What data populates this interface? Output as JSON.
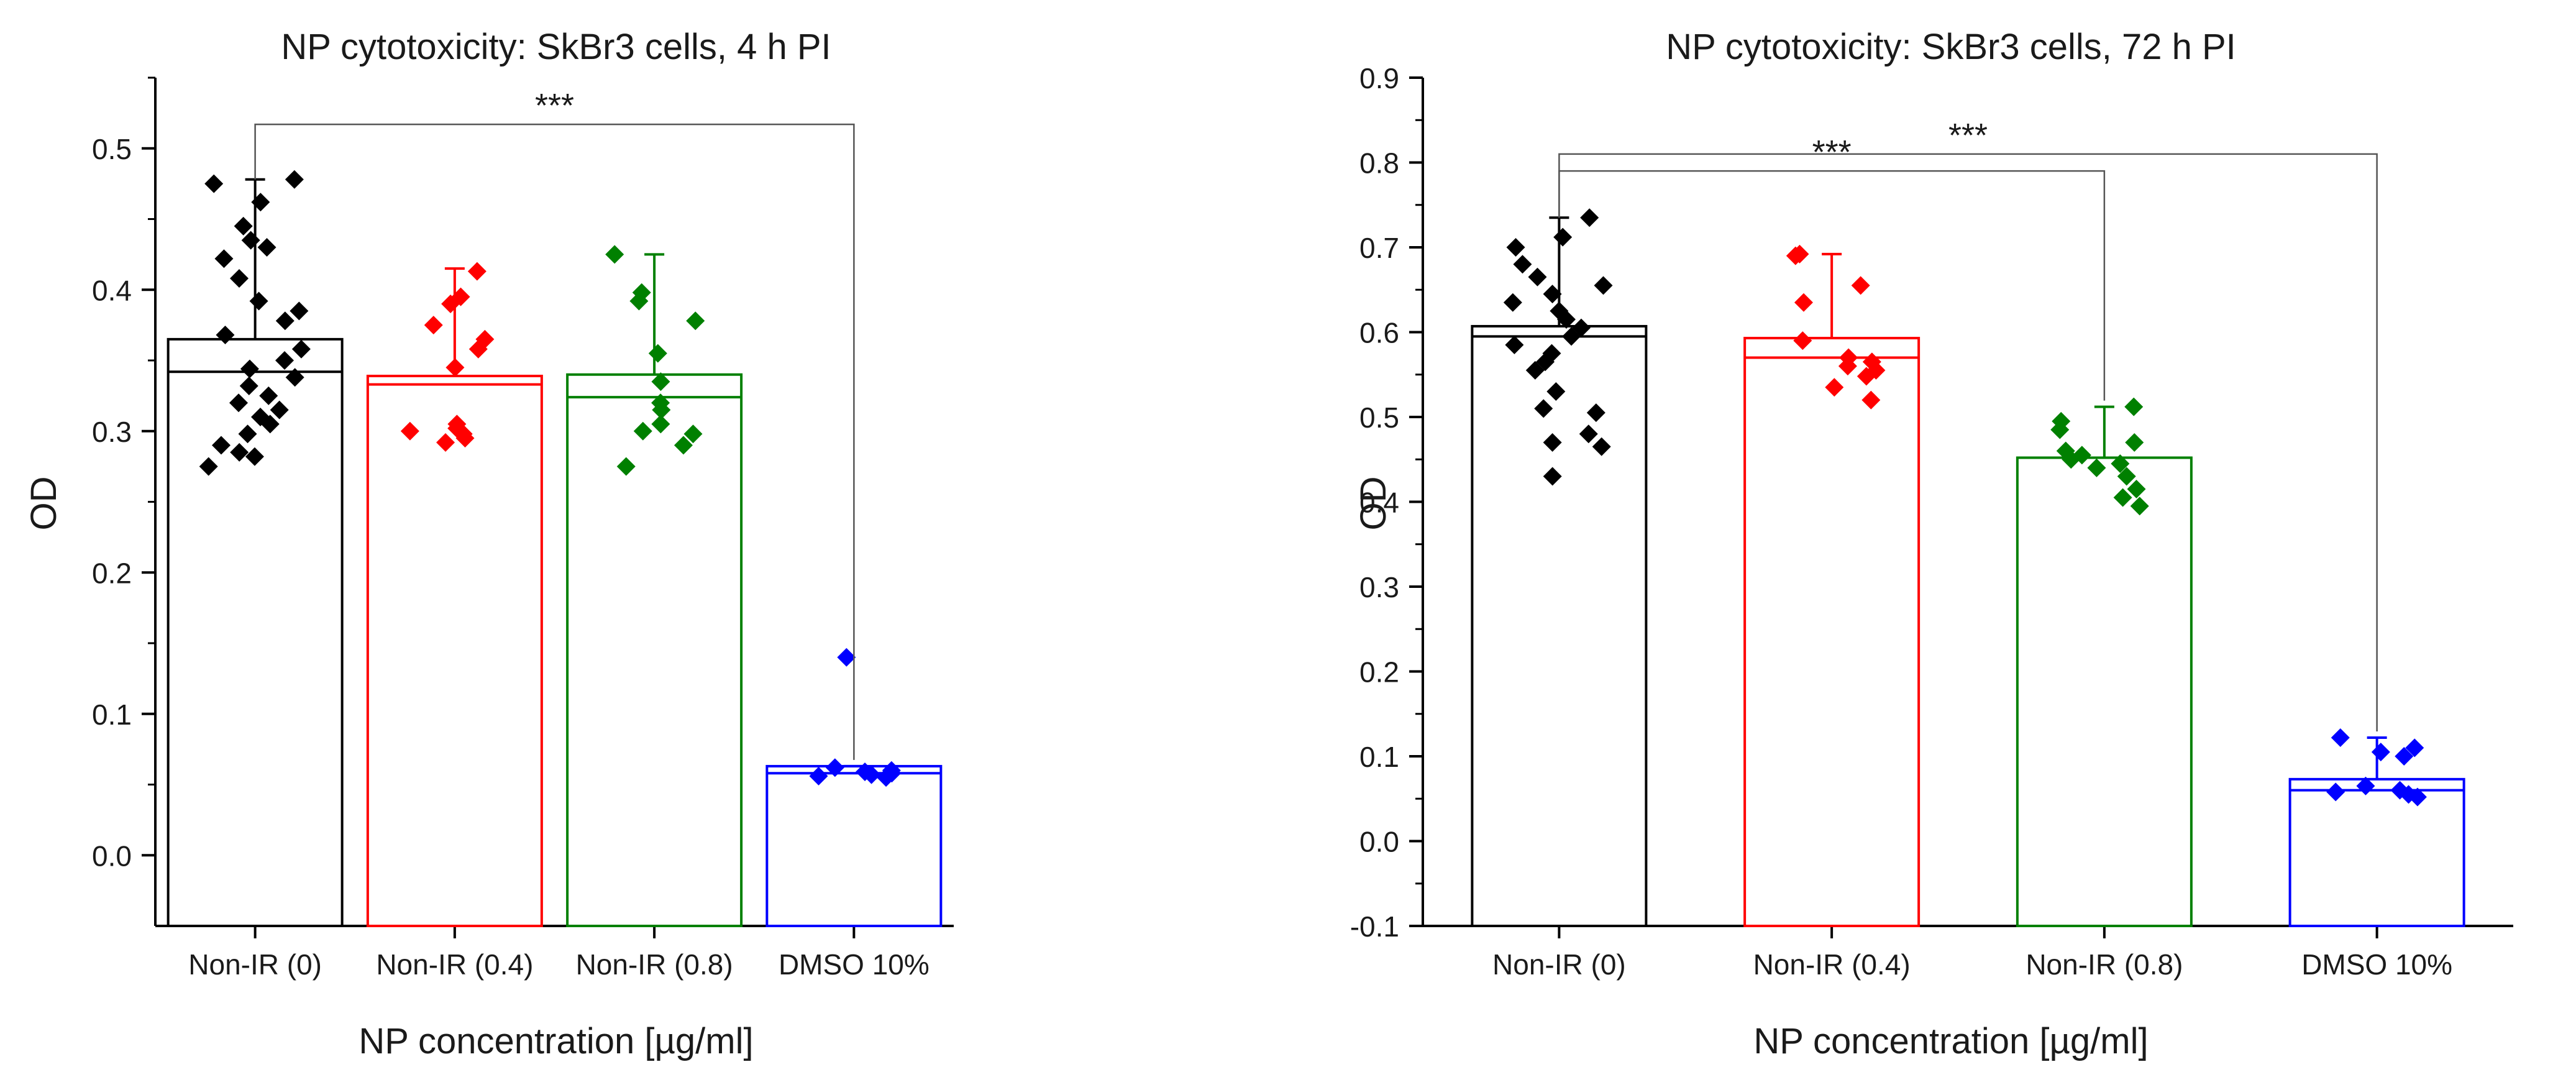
{
  "chart_data": [
    {
      "type": "bar",
      "title": "NP cytotoxicity: SkBr3 cells, 4 h PI",
      "xlabel": "NP concentration [µg/ml]",
      "ylabel": "OD",
      "ylim": [
        -0.05,
        0.55
      ],
      "yticks": [
        0.0,
        0.1,
        0.2,
        0.3,
        0.4,
        0.5
      ],
      "tick_labels": [
        "0.0",
        "0.1",
        "0.2",
        "0.3",
        "0.4",
        "0.5"
      ],
      "categories": [
        "Non-IR (0)",
        "Non-IR (0.4)",
        "Non-IR (0.8)",
        "DMSO 10%"
      ],
      "colors": [
        "#000000",
        "#ff0000",
        "#008000",
        "#0000ff"
      ],
      "values": [
        0.365,
        0.339,
        0.34,
        0.063
      ],
      "medians": [
        0.342,
        0.333,
        0.324,
        0.058
      ],
      "whisker_high": [
        0.478,
        0.415,
        0.425,
        0.063
      ],
      "points": [
        [
          0.478,
          0.475,
          0.462,
          0.445,
          0.435,
          0.43,
          0.422,
          0.408,
          0.392,
          0.385,
          0.378,
          0.368,
          0.358,
          0.35,
          0.344,
          0.338,
          0.332,
          0.325,
          0.32,
          0.315,
          0.31,
          0.305,
          0.298,
          0.29,
          0.285,
          0.282,
          0.275
        ],
        [
          0.413,
          0.395,
          0.39,
          0.375,
          0.365,
          0.358,
          0.345,
          0.305,
          0.302,
          0.3,
          0.298,
          0.295,
          0.292
        ],
        [
          0.425,
          0.398,
          0.392,
          0.378,
          0.355,
          0.335,
          0.32,
          0.315,
          0.305,
          0.3,
          0.298,
          0.29,
          0.275
        ],
        [
          0.14,
          0.062,
          0.06,
          0.059,
          0.058,
          0.057,
          0.056,
          0.055
        ]
      ],
      "significance": [
        {
          "from": 0,
          "to": 3,
          "label": "***",
          "y": 0.517
        }
      ]
    },
    {
      "type": "bar",
      "title": "NP cytotoxicity: SkBr3 cells, 72 h PI",
      "xlabel": "NP concentration [µg/ml]",
      "ylabel": "OD",
      "ylim": [
        -0.1,
        0.9
      ],
      "yticks": [
        -0.1,
        0.0,
        0.1,
        0.2,
        0.3,
        0.4,
        0.5,
        0.6,
        0.7,
        0.8,
        0.9
      ],
      "tick_labels": [
        "-0.1",
        "0.0",
        "0.1",
        "0.2",
        "0.3",
        "0.4",
        "0.5",
        "0.6",
        "0.7",
        "0.8",
        "0.9"
      ],
      "categories": [
        "Non-IR (0)",
        "Non-IR (0.4)",
        "Non-IR (0.8)",
        "DMSO 10%"
      ],
      "colors": [
        "#000000",
        "#ff0000",
        "#008000",
        "#0000ff"
      ],
      "values": [
        0.607,
        0.593,
        0.452,
        0.073
      ],
      "medians": [
        0.595,
        0.57,
        0.452,
        0.06
      ],
      "whisker_high": [
        0.735,
        0.692,
        0.512,
        0.122
      ],
      "points": [
        [
          0.735,
          0.712,
          0.7,
          0.68,
          0.665,
          0.655,
          0.645,
          0.635,
          0.625,
          0.615,
          0.605,
          0.595,
          0.585,
          0.575,
          0.565,
          0.555,
          0.53,
          0.51,
          0.505,
          0.48,
          0.47,
          0.465,
          0.43
        ],
        [
          0.692,
          0.69,
          0.655,
          0.635,
          0.59,
          0.57,
          0.565,
          0.56,
          0.555,
          0.548,
          0.535,
          0.52
        ],
        [
          0.512,
          0.495,
          0.485,
          0.47,
          0.46,
          0.455,
          0.45,
          0.445,
          0.44,
          0.43,
          0.415,
          0.405,
          0.395
        ],
        [
          0.122,
          0.11,
          0.105,
          0.1,
          0.065,
          0.06,
          0.058,
          0.055,
          0.052
        ]
      ],
      "significance": [
        {
          "from": 0,
          "to": 2,
          "label": "***",
          "y": 0.79
        },
        {
          "from": 0,
          "to": 3,
          "label": "***",
          "y": 0.81
        }
      ]
    }
  ]
}
